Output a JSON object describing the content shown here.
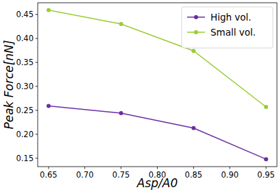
{
  "chart_data": {
    "type": "line",
    "x_label": "Asp/A0",
    "y_label": "Peak Force[nN]",
    "x": [
      0.65,
      0.75,
      0.85,
      0.95
    ],
    "series": [
      {
        "name": "High vol.",
        "color": "#6b2fa0",
        "marker": "circle",
        "values": [
          0.259,
          0.244,
          0.213,
          0.148
        ]
      },
      {
        "name": "Small vol.",
        "color": "#9acd32",
        "marker": "circle",
        "values": [
          0.459,
          0.43,
          0.374,
          0.257
        ]
      }
    ],
    "xlim": [
      0.635,
      0.965
    ],
    "xticks": [
      0.65,
      {
        "value": 0.7,
        "label": "0.70"
      },
      0.75,
      {
        "value": 0.8,
        "label": "0.80"
      },
      0.85,
      {
        "value": 0.9,
        "label": "0.90"
      },
      0.95
    ],
    "ylim": [
      0.1325,
      0.4745
    ],
    "yticks": [
      0.15,
      {
        "value": 0.2,
        "label": "0.20"
      },
      0.25,
      {
        "value": 0.3,
        "label": "0.30"
      },
      0.35,
      {
        "value": 0.4,
        "label": "0.40"
      },
      0.45
    ],
    "legend": "upper right",
    "grid": false
  }
}
